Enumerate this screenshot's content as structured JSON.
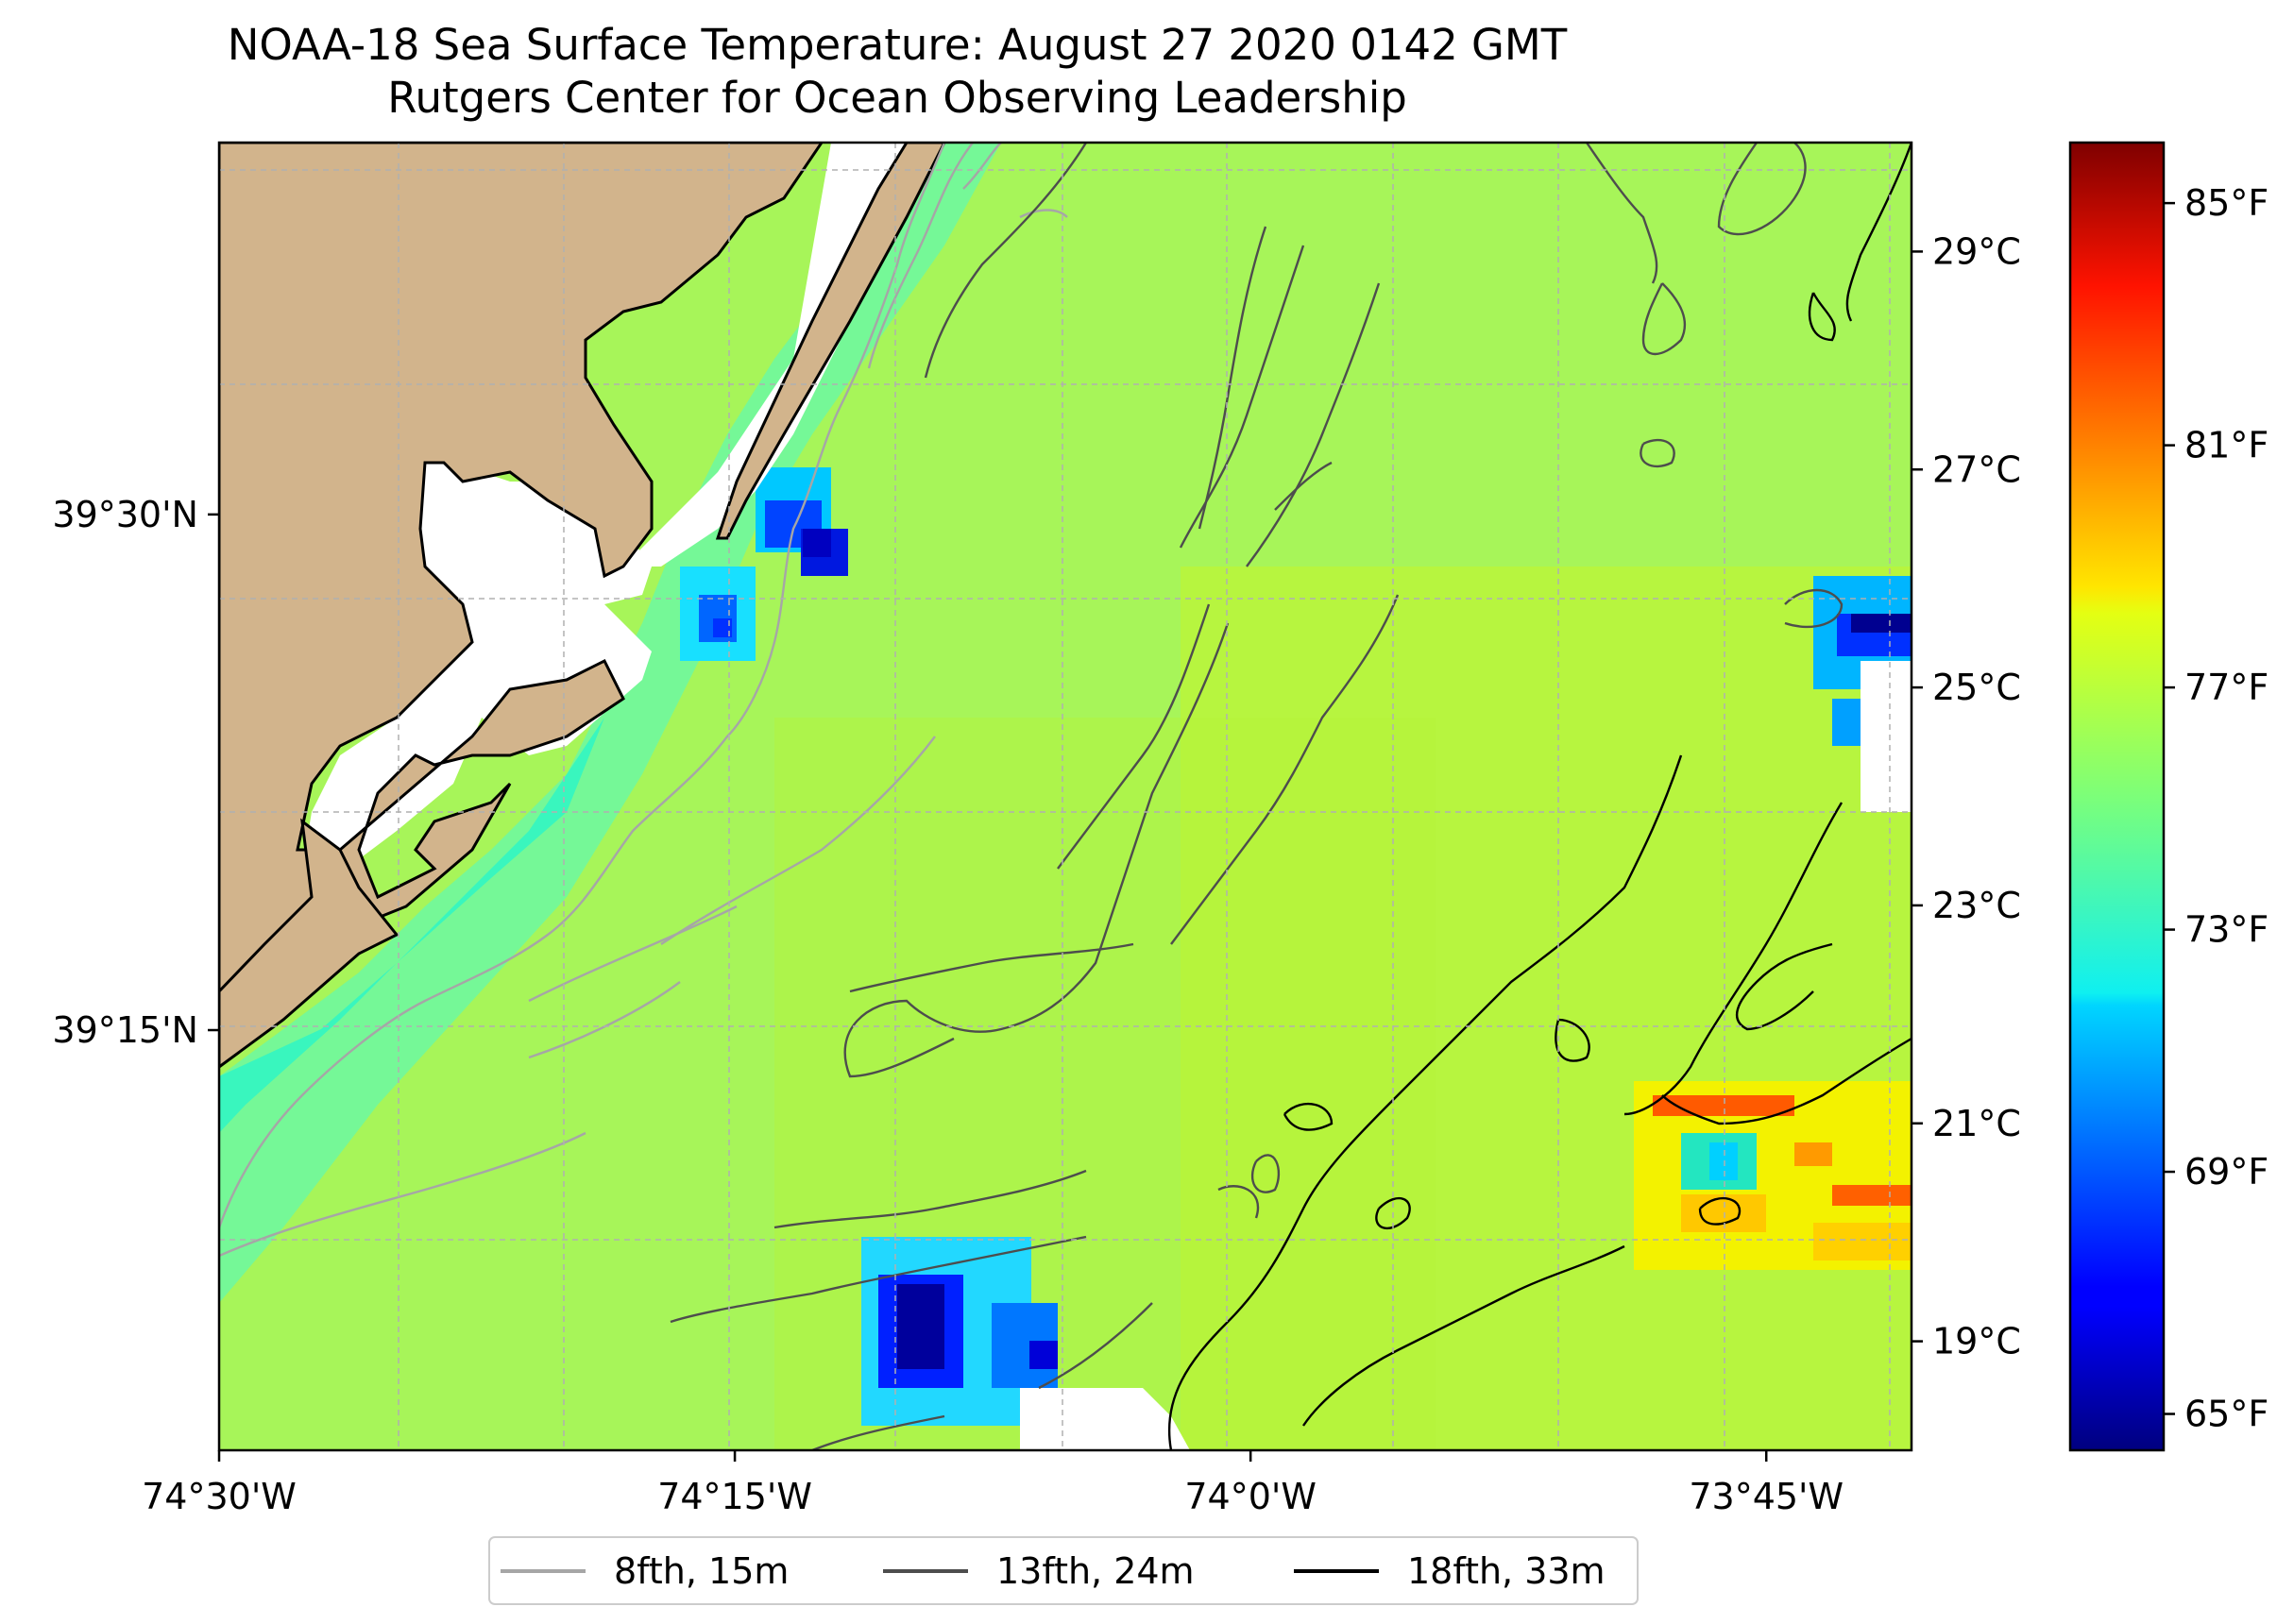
{
  "title": {
    "line1": "NOAA-18 Sea Surface Temperature: August 27 2020 0142 GMT",
    "line2": "Rutgers Center for Ocean Observing Leadership"
  },
  "map": {
    "lon_range_deg": [
      -74.5,
      -73.6796
    ],
    "lat_range_deg": [
      39.0463,
      39.6803
    ],
    "lon_ticks": [
      {
        "value": -74.5,
        "label": "74°30'W"
      },
      {
        "value": -74.25,
        "label": "74°15'W"
      },
      {
        "value": -74.0,
        "label": "74°0'W"
      },
      {
        "value": -73.75,
        "label": "73°45'W"
      }
    ],
    "lat_ticks": [
      {
        "value": 39.5,
        "label": "39°30'N"
      },
      {
        "value": 39.25,
        "label": "39°15'N"
      }
    ],
    "gridlines": true,
    "colors": {
      "land": "#d2b48c",
      "coastline": "#000000",
      "no_data": "#ffffff",
      "gridline": "#b0b0b0"
    }
  },
  "colorbar": {
    "colormap": "jet",
    "range_celsius": [
      18.0,
      30.0
    ],
    "celsius_ticks": [
      {
        "value": 19,
        "label": "19°C"
      },
      {
        "value": 21,
        "label": "21°C"
      },
      {
        "value": 23,
        "label": "23°C"
      },
      {
        "value": 25,
        "label": "25°C"
      },
      {
        "value": 27,
        "label": "27°C"
      },
      {
        "value": 29,
        "label": "29°C"
      }
    ],
    "fahrenheit_ticks": [
      {
        "value": 65,
        "label": "65°F"
      },
      {
        "value": 69,
        "label": "69°F"
      },
      {
        "value": 73,
        "label": "73°F"
      },
      {
        "value": 77,
        "label": "77°F"
      },
      {
        "value": 81,
        "label": "81°F"
      },
      {
        "value": 85,
        "label": "85°F"
      }
    ]
  },
  "legend": {
    "placement": "bottom-center",
    "items": [
      {
        "label": "8fth, 15m",
        "color": "#a6a6a6"
      },
      {
        "label": "13fth, 24m",
        "color": "#4d4d4d"
      },
      {
        "label": "18fth, 33m",
        "color": "#000000"
      }
    ]
  }
}
